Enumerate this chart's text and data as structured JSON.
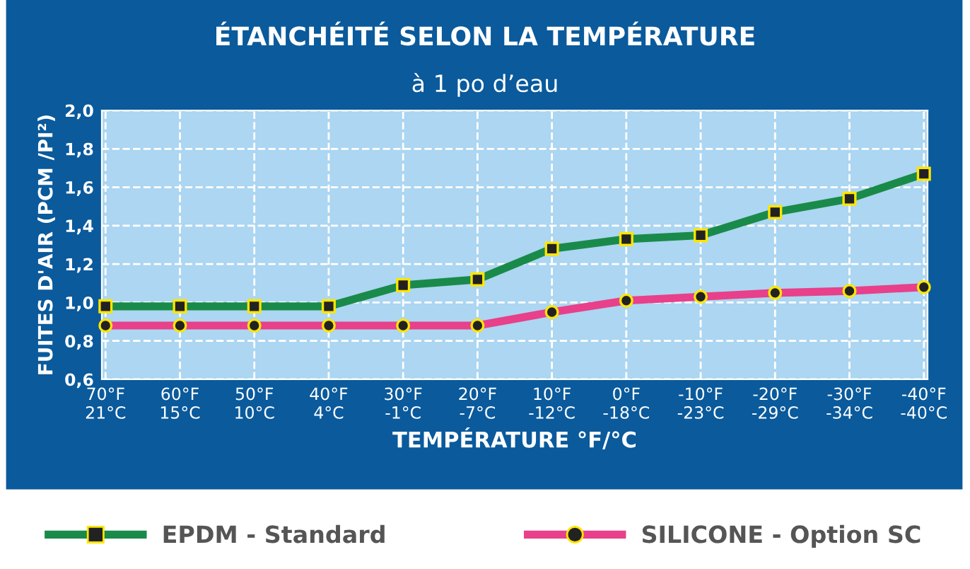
{
  "chart_data": {
    "type": "line",
    "title": "ÉTANCHÉITÉ SELON LA TEMPÉRATURE",
    "subtitle": "à 1 po d’eau",
    "xlabel": "TEMPÉRATURE °F/°C",
    "ylabel": "FUITES D'AIR (PCM /PI²)",
    "categories": [
      "70°F\n21°C",
      "60°F\n15°C",
      "50°F\n10°C",
      "40°F\n4°C",
      "30°F\n-1°C",
      "20°F\n-7°C",
      "10°F\n-12°C",
      "0°F\n-18°C",
      "-10°F\n-23°C",
      "-20°F\n-29°C",
      "-30°F\n-34°C",
      "-40°F\n-40°C"
    ],
    "series": [
      {
        "name": "EPDM - Standard",
        "color": "#1a8a4a",
        "marker": "square",
        "values": [
          0.98,
          0.98,
          0.98,
          0.98,
          1.09,
          1.12,
          1.28,
          1.33,
          1.35,
          1.47,
          1.54,
          1.67
        ]
      },
      {
        "name": "SILICONE - Option SC",
        "color": "#e8408a",
        "marker": "circle",
        "values": [
          0.88,
          0.88,
          0.88,
          0.88,
          0.88,
          0.88,
          0.95,
          1.01,
          1.03,
          1.05,
          1.06,
          1.08
        ]
      }
    ],
    "ylim": [
      0.6,
      2.0
    ],
    "yticks": [
      {
        "value": 0.6,
        "label": "0,6"
      },
      {
        "value": 0.8,
        "label": "0,8"
      },
      {
        "value": 1.0,
        "label": "1,0"
      },
      {
        "value": 1.2,
        "label": "1,2"
      },
      {
        "value": 1.4,
        "label": "1,4"
      },
      {
        "value": 1.6,
        "label": "1,6"
      },
      {
        "value": 1.8,
        "label": "1,8"
      },
      {
        "value": 2.0,
        "label": "2,0"
      }
    ],
    "grid": true,
    "legend": "bottom",
    "line_style": "solid"
  }
}
